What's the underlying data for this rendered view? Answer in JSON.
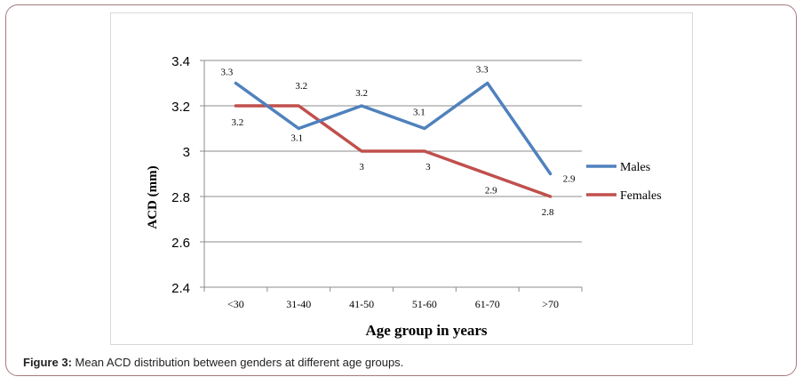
{
  "caption": {
    "label": "Figure 3:",
    "text": " Mean ACD distribution between genders at different age groups."
  },
  "chart_data": {
    "type": "line",
    "xlabel": "Age group in years",
    "ylabel": "ACD (mm)",
    "categories": [
      "<30",
      "31-40",
      "41-50",
      "51-60",
      "61-70",
      ">70"
    ],
    "ylim": [
      2.4,
      3.4
    ],
    "yticks": [
      "2.4",
      "2.6",
      "2.8",
      "3",
      "3.2",
      "3.4"
    ],
    "grid": true,
    "legend_position": "right",
    "series": [
      {
        "name": "Males",
        "color": "#4f81bd",
        "values": [
          3.3,
          3.1,
          3.2,
          3.1,
          3.3,
          2.9
        ],
        "labels": [
          "3.3",
          "3.1",
          "3.2",
          "3.1",
          "3.3",
          "2.9"
        ]
      },
      {
        "name": "Females",
        "color": "#c0504d",
        "values": [
          3.2,
          3.2,
          3.0,
          3.0,
          2.9,
          2.8
        ],
        "labels": [
          "3.2",
          "3.2",
          "3",
          "3",
          "2.9",
          "2.8"
        ]
      }
    ]
  }
}
